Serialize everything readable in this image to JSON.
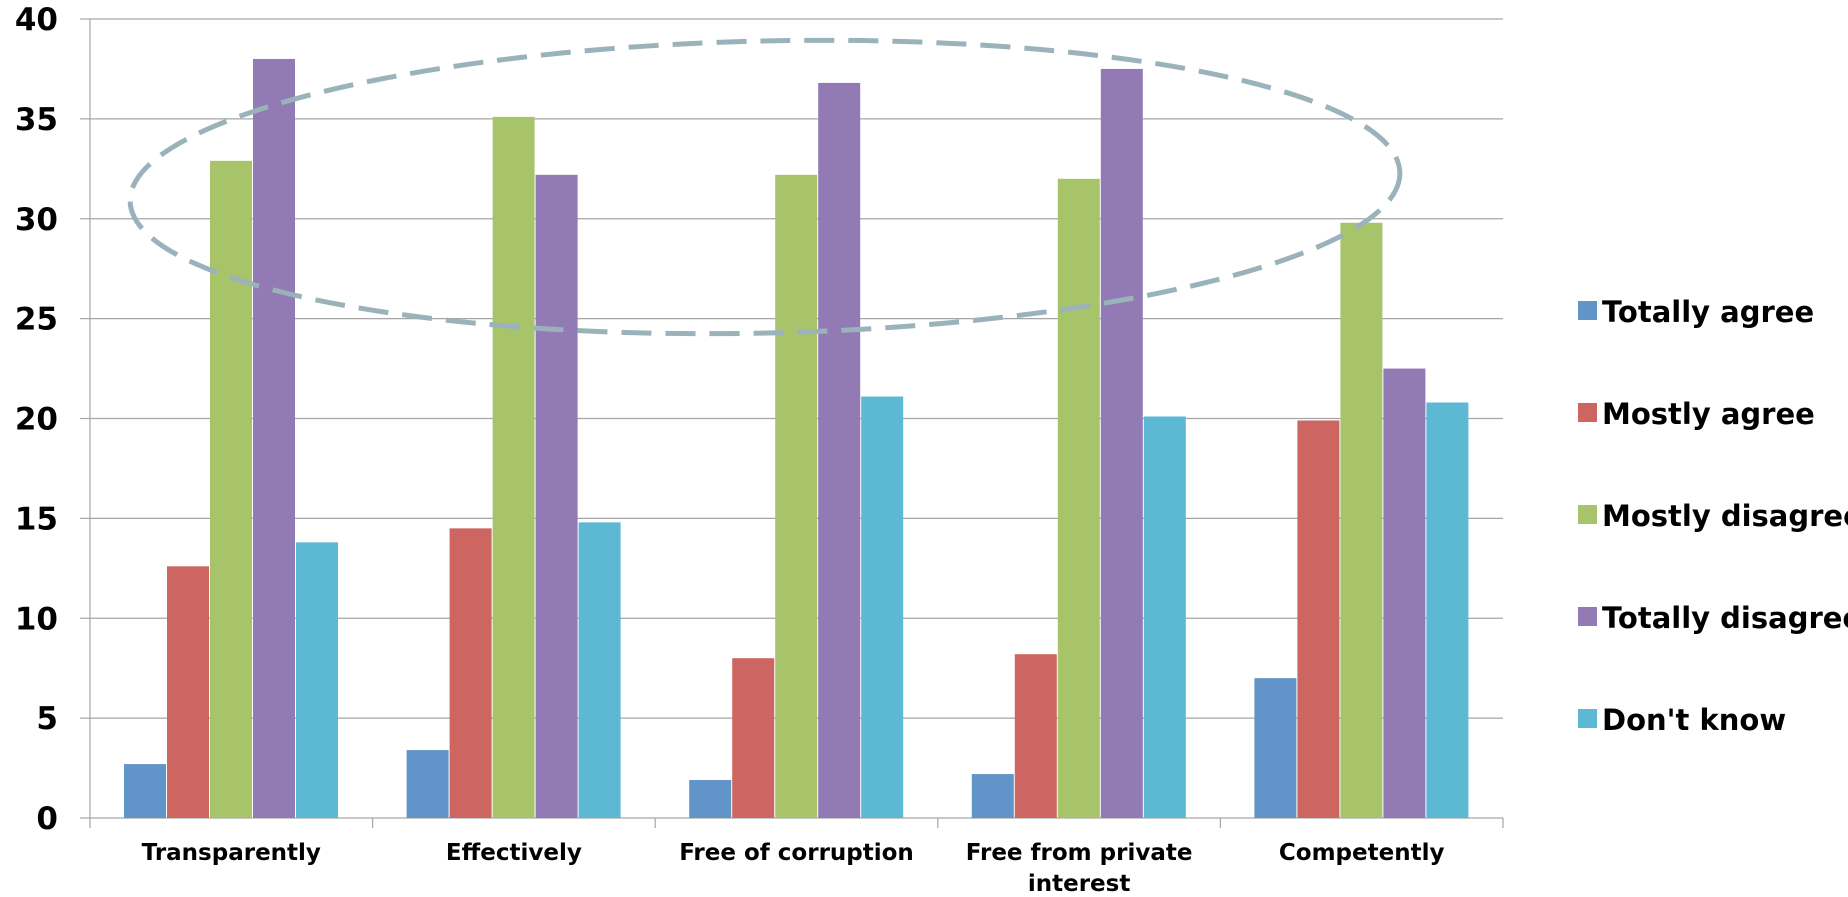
{
  "chart_data": {
    "type": "bar",
    "title": "",
    "xlabel": "",
    "ylabel": "",
    "ylim": [
      0,
      40
    ],
    "yticks": [
      0,
      5,
      10,
      15,
      20,
      25,
      30,
      35,
      40
    ],
    "grid": true,
    "legend_position": "right",
    "categories": [
      [
        "Transparently"
      ],
      [
        "Effectively"
      ],
      [
        "Free of corruption"
      ],
      [
        "Free from private",
        "interest"
      ],
      [
        "Competently"
      ]
    ],
    "series": [
      {
        "name": "Totally agree",
        "color": "#6194C9",
        "values": [
          2.7,
          3.4,
          1.9,
          2.2,
          7.0
        ]
      },
      {
        "name": "Mostly agree",
        "color": "#CD6560",
        "values": [
          12.6,
          14.5,
          8.0,
          8.2,
          19.9
        ]
      },
      {
        "name": "Mostly disagree",
        "color": "#A8C46B",
        "values": [
          32.9,
          35.1,
          32.2,
          32.0,
          29.8
        ]
      },
      {
        "name": "Totally disagree",
        "color": "#927AB4",
        "values": [
          38.0,
          32.2,
          36.8,
          37.5,
          22.5
        ]
      },
      {
        "name": "Don't know",
        "color": "#5DB9D3",
        "values": [
          13.8,
          14.8,
          21.1,
          20.1,
          20.8
        ]
      }
    ],
    "annotation": {
      "shape": "dashed-ellipse",
      "color": "#9AB3BA"
    }
  }
}
